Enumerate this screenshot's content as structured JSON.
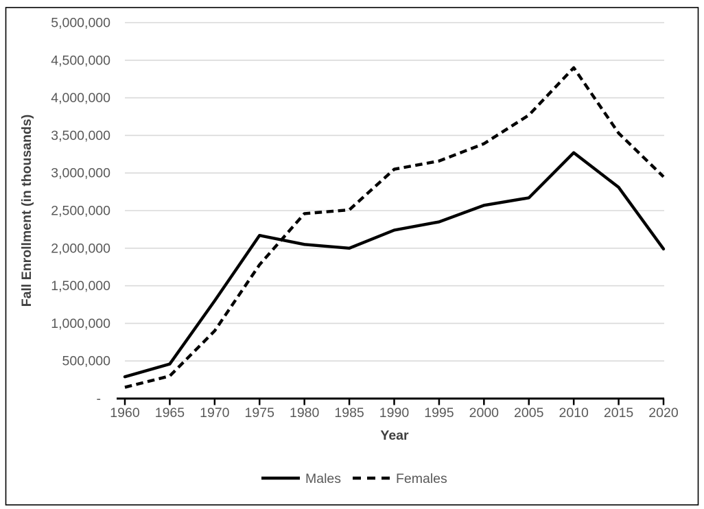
{
  "window": {
    "background_color": "#ffffff",
    "border_color": "#000000"
  },
  "chart_data": {
    "type": "line",
    "title": "",
    "xlabel": "Year",
    "ylabel": "Fall Enrollment (in thousands)",
    "categories": [
      "1960",
      "1965",
      "1970",
      "1975",
      "1980",
      "1985",
      "1990",
      "1995",
      "2000",
      "2005",
      "2010",
      "2015",
      "2020"
    ],
    "ylim": [
      0,
      5000000
    ],
    "ytick_step": 500000,
    "ytick_labels": [
      "-",
      "500,000",
      "1,000,000",
      "1,500,000",
      "2,000,000",
      "2,500,000",
      "3,000,000",
      "3,500,000",
      "4,000,000",
      "4,500,000",
      "5,000,000"
    ],
    "zero_tick_label": "-",
    "grid": true,
    "gridline_color": "#D9D9D9",
    "axis_color": "#000000",
    "tick_label_color": "#595959",
    "axis_title_color": "#404040",
    "legend_position": "bottom",
    "series": [
      {
        "name": "Males",
        "line_style": "solid",
        "color": "#000000",
        "values": [
          290000,
          460000,
          1300000,
          2170000,
          2050000,
          2000000,
          2240000,
          2350000,
          2570000,
          2670000,
          3270000,
          2810000,
          1990000
        ]
      },
      {
        "name": "Females",
        "line_style": "dashed",
        "color": "#000000",
        "values": [
          150000,
          300000,
          900000,
          1780000,
          2460000,
          2510000,
          3050000,
          3160000,
          3390000,
          3770000,
          4400000,
          3530000,
          2950000
        ]
      }
    ]
  }
}
